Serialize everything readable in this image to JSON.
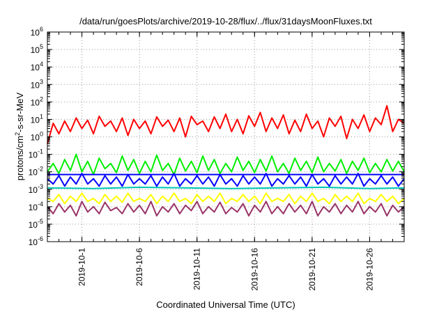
{
  "chart_data": {
    "type": "line",
    "title": "/data/run/goesPlots/archive/2019-10-28/flux/../flux/31daysMoonFluxes.txt",
    "xlabel": "Coordinated Universal Time (UTC)",
    "ylabel": "protons/cm2-s-sr-MeV",
    "ylabel_parts": {
      "before": "protons/cm",
      "sup": "2",
      "after": "-s-sr-MeV"
    },
    "y_scale": "log",
    "ylim": [
      1e-06,
      1000000.0
    ],
    "xlim": [
      "2019-09-28",
      "2019-10-29"
    ],
    "grid": true,
    "y_ticks": [
      {
        "value": 1e-06,
        "base": "10",
        "exp": "-6"
      },
      {
        "value": 1e-05,
        "base": "10",
        "exp": "-5"
      },
      {
        "value": 0.0001,
        "base": "10",
        "exp": "-4"
      },
      {
        "value": 0.001,
        "base": "10",
        "exp": "-3"
      },
      {
        "value": 0.01,
        "base": "10",
        "exp": "-2"
      },
      {
        "value": 0.1,
        "base": "10",
        "exp": "-1"
      },
      {
        "value": 1,
        "base": "10",
        "exp": "0"
      },
      {
        "value": 10,
        "base": "10",
        "exp": "1"
      },
      {
        "value": 100,
        "base": "10",
        "exp": "2"
      },
      {
        "value": 1000,
        "base": "10",
        "exp": "3"
      },
      {
        "value": 10000,
        "base": "10",
        "exp": "4"
      },
      {
        "value": 100000,
        "base": "10",
        "exp": "5"
      },
      {
        "value": 1000000,
        "base": "10",
        "exp": "6"
      }
    ],
    "x_ticks": [
      "2019-10-1",
      "2019-10-6",
      "2019-10-11",
      "2019-10-16",
      "2019-10-21",
      "2019-10-26"
    ],
    "series": [
      {
        "color": "#ff0000",
        "x": [
          "2019-09-28",
          "2019-09-28.5",
          "2019-09-29",
          "2019-09-29.5",
          "2019-09-30",
          "2019-09-30.5",
          "2019-10-01",
          "2019-10-01.5",
          "2019-10-02",
          "2019-10-02.5",
          "2019-10-03",
          "2019-10-03.5",
          "2019-10-04",
          "2019-10-04.5",
          "2019-10-05",
          "2019-10-05.5",
          "2019-10-06",
          "2019-10-06.5",
          "2019-10-07",
          "2019-10-07.5",
          "2019-10-08",
          "2019-10-08.5",
          "2019-10-09",
          "2019-10-09.5",
          "2019-10-10",
          "2019-10-10.5",
          "2019-10-11",
          "2019-10-11.5",
          "2019-10-12",
          "2019-10-12.5",
          "2019-10-13",
          "2019-10-13.5",
          "2019-10-14",
          "2019-10-14.5",
          "2019-10-15",
          "2019-10-15.5",
          "2019-10-16",
          "2019-10-16.5",
          "2019-10-17",
          "2019-10-17.5",
          "2019-10-18",
          "2019-10-18.5",
          "2019-10-19",
          "2019-10-19.5",
          "2019-10-20",
          "2019-10-20.5",
          "2019-10-21",
          "2019-10-21.5",
          "2019-10-22",
          "2019-10-22.5",
          "2019-10-23",
          "2019-10-23.5",
          "2019-10-24",
          "2019-10-24.5",
          "2019-10-25",
          "2019-10-25.5",
          "2019-10-26",
          "2019-10-26.5",
          "2019-10-27",
          "2019-10-27.5",
          "2019-10-28",
          "2019-10-28.5",
          "2019-10-29"
        ],
        "values": [
          0.4,
          6,
          1.5,
          8,
          2,
          12,
          3,
          9,
          1.5,
          15,
          4,
          8,
          2,
          12,
          1.2,
          10,
          3,
          8,
          1.5,
          14,
          4,
          9,
          2,
          12,
          1,
          15,
          5,
          8,
          2,
          14,
          3,
          20,
          2,
          10,
          1.5,
          16,
          4,
          25,
          2,
          12,
          3,
          18,
          1.5,
          9,
          2,
          20,
          3,
          8,
          1,
          12,
          4,
          15,
          0.8,
          10,
          3,
          18,
          2,
          12,
          5,
          60,
          2,
          10,
          6
        ]
      },
      {
        "color": "#00ee00",
        "x": [
          "2019-09-28",
          "2019-09-28.5",
          "2019-09-29",
          "2019-09-29.5",
          "2019-09-30",
          "2019-09-30.5",
          "2019-10-01",
          "2019-10-01.5",
          "2019-10-02",
          "2019-10-02.5",
          "2019-10-03",
          "2019-10-03.5",
          "2019-10-04",
          "2019-10-04.5",
          "2019-10-05",
          "2019-10-05.5",
          "2019-10-06",
          "2019-10-06.5",
          "2019-10-07",
          "2019-10-07.5",
          "2019-10-08",
          "2019-10-08.5",
          "2019-10-09",
          "2019-10-09.5",
          "2019-10-10",
          "2019-10-10.5",
          "2019-10-11",
          "2019-10-11.5",
          "2019-10-12",
          "2019-10-12.5",
          "2019-10-13",
          "2019-10-13.5",
          "2019-10-14",
          "2019-10-14.5",
          "2019-10-15",
          "2019-10-15.5",
          "2019-10-16",
          "2019-10-16.5",
          "2019-10-17",
          "2019-10-17.5",
          "2019-10-18",
          "2019-10-18.5",
          "2019-10-19",
          "2019-10-19.5",
          "2019-10-20",
          "2019-10-20.5",
          "2019-10-21",
          "2019-10-21.5",
          "2019-10-22",
          "2019-10-22.5",
          "2019-10-23",
          "2019-10-23.5",
          "2019-10-24",
          "2019-10-24.5",
          "2019-10-25",
          "2019-10-25.5",
          "2019-10-26",
          "2019-10-26.5",
          "2019-10-27",
          "2019-10-27.5",
          "2019-10-28",
          "2019-10-28.5",
          "2019-10-29"
        ],
        "values": [
          0.01,
          0.03,
          0.008,
          0.05,
          0.012,
          0.1,
          0.01,
          0.04,
          0.007,
          0.06,
          0.015,
          0.03,
          0.009,
          0.08,
          0.012,
          0.05,
          0.008,
          0.04,
          0.01,
          0.09,
          0.012,
          0.03,
          0.007,
          0.06,
          0.011,
          0.04,
          0.009,
          0.08,
          0.012,
          0.05,
          0.008,
          0.03,
          0.01,
          0.07,
          0.012,
          0.04,
          0.009,
          0.05,
          0.011,
          0.08,
          0.01,
          0.03,
          0.008,
          0.06,
          0.012,
          0.04,
          0.009,
          0.07,
          0.01,
          0.03,
          0.011,
          0.05,
          0.008,
          0.04,
          0.012,
          0.06,
          0.009,
          0.03,
          0.01,
          0.05,
          0.011,
          0.04,
          0.01
        ]
      },
      {
        "color": "#00c8b4",
        "x": [
          "2019-09-28",
          "2019-10-02",
          "2019-10-06",
          "2019-10-10",
          "2019-10-14",
          "2019-10-18",
          "2019-10-22",
          "2019-10-26",
          "2019-10-29"
        ],
        "values": [
          0.0012,
          0.0011,
          0.0013,
          0.0012,
          0.0011,
          0.0012,
          0.0013,
          0.0011,
          0.0012
        ]
      },
      {
        "color": "#0000ff",
        "x": [
          "2019-09-28",
          "2019-09-28.5",
          "2019-09-29",
          "2019-09-29.5",
          "2019-09-30",
          "2019-09-30.5",
          "2019-10-01",
          "2019-10-01.5",
          "2019-10-02",
          "2019-10-02.5",
          "2019-10-03",
          "2019-10-03.5",
          "2019-10-04",
          "2019-10-04.5",
          "2019-10-05",
          "2019-10-05.5",
          "2019-10-06",
          "2019-10-06.5",
          "2019-10-07",
          "2019-10-07.5",
          "2019-10-08",
          "2019-10-08.5",
          "2019-10-09",
          "2019-10-09.5",
          "2019-10-10",
          "2019-10-10.5",
          "2019-10-11",
          "2019-10-11.5",
          "2019-10-12",
          "2019-10-12.5",
          "2019-10-13",
          "2019-10-13.5",
          "2019-10-14",
          "2019-10-14.5",
          "2019-10-15",
          "2019-10-15.5",
          "2019-10-16",
          "2019-10-16.5",
          "2019-10-17",
          "2019-10-17.5",
          "2019-10-18",
          "2019-10-18.5",
          "2019-10-19",
          "2019-10-19.5",
          "2019-10-20",
          "2019-10-20.5",
          "2019-10-21",
          "2019-10-21.5",
          "2019-10-22",
          "2019-10-22.5",
          "2019-10-23",
          "2019-10-23.5",
          "2019-10-24",
          "2019-10-24.5",
          "2019-10-25",
          "2019-10-25.5",
          "2019-10-26",
          "2019-10-26.5",
          "2019-10-27",
          "2019-10-27.5",
          "2019-10-28",
          "2019-10-28.5",
          "2019-10-29"
        ],
        "values": [
          0.004,
          0.002,
          0.006,
          0.0015,
          0.005,
          0.002,
          0.008,
          0.002,
          0.004,
          0.0015,
          0.006,
          0.002,
          0.005,
          0.0015,
          0.007,
          0.002,
          0.004,
          0.002,
          0.006,
          0.0015,
          0.005,
          0.002,
          0.008,
          0.0015,
          0.004,
          0.002,
          0.006,
          0.002,
          0.005,
          0.0015,
          0.007,
          0.002,
          0.004,
          0.0015,
          0.006,
          0.002,
          0.005,
          0.002,
          0.008,
          0.0015,
          0.004,
          0.002,
          0.006,
          0.002,
          0.005,
          0.0015,
          0.007,
          0.002,
          0.004,
          0.0015,
          0.006,
          0.002,
          0.005,
          0.002,
          0.008,
          0.0015,
          0.004,
          0.002,
          0.006,
          0.002,
          0.005,
          0.0015,
          0.004
        ]
      },
      {
        "color": "#0000ff",
        "x": [
          "2019-09-28",
          "2019-10-29"
        ],
        "values": [
          0.007,
          0.007
        ]
      },
      {
        "color": "#ffff00",
        "x": [
          "2019-09-28",
          "2019-09-28.5",
          "2019-09-29",
          "2019-09-29.5",
          "2019-09-30",
          "2019-09-30.5",
          "2019-10-01",
          "2019-10-01.5",
          "2019-10-02",
          "2019-10-02.5",
          "2019-10-03",
          "2019-10-03.5",
          "2019-10-04",
          "2019-10-04.5",
          "2019-10-05",
          "2019-10-05.5",
          "2019-10-06",
          "2019-10-06.5",
          "2019-10-07",
          "2019-10-07.5",
          "2019-10-08",
          "2019-10-08.5",
          "2019-10-09",
          "2019-10-09.5",
          "2019-10-10",
          "2019-10-10.5",
          "2019-10-11",
          "2019-10-11.5",
          "2019-10-12",
          "2019-10-12.5",
          "2019-10-13",
          "2019-10-13.5",
          "2019-10-14",
          "2019-10-14.5",
          "2019-10-15",
          "2019-10-15.5",
          "2019-10-16",
          "2019-10-16.5",
          "2019-10-17",
          "2019-10-17.5",
          "2019-10-18",
          "2019-10-18.5",
          "2019-10-19",
          "2019-10-19.5",
          "2019-10-20",
          "2019-10-20.5",
          "2019-10-21",
          "2019-10-21.5",
          "2019-10-22",
          "2019-10-22.5",
          "2019-10-23",
          "2019-10-23.5",
          "2019-10-24",
          "2019-10-24.5",
          "2019-10-25",
          "2019-10-25.5",
          "2019-10-26",
          "2019-10-26.5",
          "2019-10-27",
          "2019-10-27.5",
          "2019-10-28",
          "2019-10-28.5",
          "2019-10-29"
        ],
        "values": [
          0.0003,
          0.0002,
          0.0005,
          0.00015,
          0.0004,
          0.0002,
          0.0006,
          0.0002,
          0.0003,
          0.00015,
          0.0005,
          0.0002,
          0.0004,
          0.00018,
          0.0006,
          0.0002,
          0.0003,
          0.0002,
          0.0005,
          0.00015,
          0.0004,
          0.0002,
          0.0006,
          0.0002,
          0.0003,
          0.00015,
          0.0005,
          0.0002,
          0.0004,
          0.0002,
          0.0006,
          0.00015,
          0.0003,
          0.0002,
          0.0005,
          0.0002,
          0.0004,
          0.00015,
          0.0006,
          0.0002,
          0.0003,
          0.0002,
          0.0005,
          0.00015,
          0.0004,
          0.0002,
          0.0006,
          0.0002,
          0.0003,
          0.00015,
          0.0005,
          0.0002,
          0.0004,
          0.0002,
          0.0006,
          0.00015,
          0.0003,
          0.0002,
          0.0005,
          0.0002,
          0.0004,
          0.00015,
          0.0003
        ]
      },
      {
        "color": "#993366",
        "x": [
          "2019-09-28",
          "2019-09-28.5",
          "2019-09-29",
          "2019-09-29.5",
          "2019-09-30",
          "2019-09-30.5",
          "2019-10-01",
          "2019-10-01.5",
          "2019-10-02",
          "2019-10-02.5",
          "2019-10-03",
          "2019-10-03.5",
          "2019-10-04",
          "2019-10-04.5",
          "2019-10-05",
          "2019-10-05.5",
          "2019-10-06",
          "2019-10-06.5",
          "2019-10-07",
          "2019-10-07.5",
          "2019-10-08",
          "2019-10-08.5",
          "2019-10-09",
          "2019-10-09.5",
          "2019-10-10",
          "2019-10-10.5",
          "2019-10-11",
          "2019-10-11.5",
          "2019-10-12",
          "2019-10-12.5",
          "2019-10-13",
          "2019-10-13.5",
          "2019-10-14",
          "2019-10-14.5",
          "2019-10-15",
          "2019-10-15.5",
          "2019-10-16",
          "2019-10-16.5",
          "2019-10-17",
          "2019-10-17.5",
          "2019-10-18",
          "2019-10-18.5",
          "2019-10-19",
          "2019-10-19.5",
          "2019-10-20",
          "2019-10-20.5",
          "2019-10-21",
          "2019-10-21.5",
          "2019-10-22",
          "2019-10-22.5",
          "2019-10-23",
          "2019-10-23.5",
          "2019-10-24",
          "2019-10-24.5",
          "2019-10-25",
          "2019-10-25.5",
          "2019-10-26",
          "2019-10-26.5",
          "2019-10-27",
          "2019-10-27.5",
          "2019-10-28",
          "2019-10-28.5",
          "2019-10-29"
        ],
        "values": [
          0.0001,
          4e-05,
          0.00015,
          5e-05,
          0.00012,
          3e-05,
          0.0002,
          5e-05,
          0.0001,
          4e-05,
          0.00018,
          6e-05,
          9e-05,
          4e-05,
          0.00015,
          5e-05,
          0.00012,
          4e-05,
          0.0002,
          3e-05,
          0.0001,
          5e-05,
          0.00015,
          4e-05,
          0.00012,
          6e-05,
          0.0002,
          4e-05,
          0.0001,
          5e-05,
          0.00018,
          4e-05,
          9e-05,
          5e-05,
          0.00015,
          3e-05,
          0.00012,
          5e-05,
          0.0002,
          4e-05,
          0.0001,
          4e-05,
          0.00015,
          5e-05,
          0.00012,
          4e-05,
          0.0002,
          3e-05,
          0.0001,
          5e-05,
          0.00015,
          4e-05,
          0.00012,
          5e-05,
          0.0002,
          4e-05,
          0.0001,
          5e-05,
          0.00015,
          3e-05,
          0.00012,
          5e-05,
          0.0001
        ]
      }
    ]
  }
}
